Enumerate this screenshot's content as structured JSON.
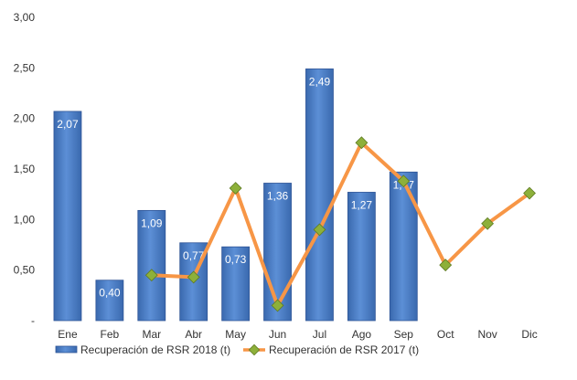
{
  "chart_data": {
    "type": "bar",
    "categories": [
      "Ene",
      "Feb",
      "Mar",
      "Abr",
      "May",
      "Jun",
      "Jul",
      "Ago",
      "Sep",
      "Oct",
      "Nov",
      "Dic"
    ],
    "ylim": [
      0,
      3
    ],
    "yticks": [
      "-",
      "0,50",
      "1,00",
      "1,50",
      "2,00",
      "2,50",
      "3,00"
    ],
    "grid": false,
    "legend_position": "bottom",
    "series": [
      {
        "name": "Recuperación de RSR 2018 (t)",
        "kind": "bar",
        "color": "#4F81BD",
        "values": [
          2.07,
          0.4,
          1.09,
          0.77,
          0.73,
          1.36,
          2.49,
          1.27,
          1.47,
          null,
          null,
          null
        ],
        "labels": [
          "2,07",
          "0,40",
          "1,09",
          "0,77",
          "0,73",
          "1,36",
          "2,49",
          "1,27",
          "1,47",
          "",
          "",
          ""
        ]
      },
      {
        "name": "Recuperación de RSR 2017 (t)",
        "kind": "line",
        "color": "#F79646",
        "marker_color": "#8DB03A",
        "values": [
          null,
          null,
          0.45,
          0.43,
          1.31,
          0.15,
          0.9,
          1.76,
          1.38,
          0.55,
          0.96,
          1.26
        ]
      }
    ]
  }
}
